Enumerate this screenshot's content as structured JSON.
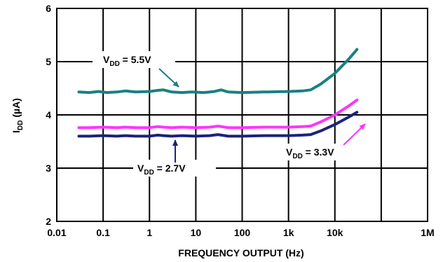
{
  "chart_data": {
    "type": "line",
    "xlabel": "FREQUENCY OUTPUT (Hz)",
    "ylabel_main": "I",
    "ylabel_sub": "DD",
    "ylabel_unit": " (µA)",
    "x_scale": "log",
    "xlim": [
      0.01,
      1000000
    ],
    "ylim": [
      2,
      6
    ],
    "grid": true,
    "legend": "none",
    "x_ticks": [
      {
        "value": 0.01,
        "label": "0.01"
      },
      {
        "value": 0.1,
        "label": "0.1"
      },
      {
        "value": 1,
        "label": "1"
      },
      {
        "value": 10,
        "label": "10"
      },
      {
        "value": 100,
        "label": "100"
      },
      {
        "value": 1000,
        "label": "1k"
      },
      {
        "value": 10000,
        "label": "10k"
      },
      {
        "value": 1000000,
        "label": "1M"
      }
    ],
    "y_ticks": [
      {
        "value": 2,
        "label": "2"
      },
      {
        "value": 3,
        "label": "3"
      },
      {
        "value": 4,
        "label": "4"
      },
      {
        "value": 5,
        "label": "5"
      },
      {
        "value": 6,
        "label": "6"
      }
    ],
    "series": [
      {
        "name": "VDD = 5.5V",
        "color": "#1a8080",
        "points": [
          [
            0.03,
            4.43
          ],
          [
            0.05,
            4.42
          ],
          [
            0.08,
            4.44
          ],
          [
            0.12,
            4.42
          ],
          [
            0.2,
            4.43
          ],
          [
            0.3,
            4.45
          ],
          [
            0.5,
            4.43
          ],
          [
            1,
            4.44
          ],
          [
            1.5,
            4.46
          ],
          [
            2,
            4.47
          ],
          [
            3,
            4.43
          ],
          [
            5,
            4.42
          ],
          [
            8,
            4.43
          ],
          [
            15,
            4.42
          ],
          [
            25,
            4.44
          ],
          [
            35,
            4.47
          ],
          [
            50,
            4.43
          ],
          [
            100,
            4.42
          ],
          [
            300,
            4.43
          ],
          [
            1000,
            4.44
          ],
          [
            2000,
            4.45
          ],
          [
            3000,
            4.47
          ],
          [
            5000,
            4.58
          ],
          [
            10000,
            4.78
          ],
          [
            20000,
            5.05
          ],
          [
            30000,
            5.23
          ]
        ]
      },
      {
        "name": "VDD = 3.3V",
        "color": "#ff33ff",
        "points": [
          [
            0.03,
            3.76
          ],
          [
            0.05,
            3.76
          ],
          [
            0.1,
            3.77
          ],
          [
            0.2,
            3.76
          ],
          [
            0.3,
            3.77
          ],
          [
            0.5,
            3.76
          ],
          [
            1,
            3.76
          ],
          [
            1.5,
            3.78
          ],
          [
            2,
            3.77
          ],
          [
            3,
            3.76
          ],
          [
            5,
            3.77
          ],
          [
            10,
            3.76
          ],
          [
            20,
            3.77
          ],
          [
            30,
            3.79
          ],
          [
            50,
            3.76
          ],
          [
            100,
            3.76
          ],
          [
            300,
            3.77
          ],
          [
            1000,
            3.77
          ],
          [
            2000,
            3.78
          ],
          [
            3000,
            3.79
          ],
          [
            5000,
            3.87
          ],
          [
            10000,
            4.0
          ],
          [
            20000,
            4.17
          ],
          [
            30000,
            4.28
          ]
        ]
      },
      {
        "name": "VDD = 2.7V",
        "color": "#1a237e",
        "points": [
          [
            0.03,
            3.6
          ],
          [
            0.05,
            3.6
          ],
          [
            0.1,
            3.61
          ],
          [
            0.2,
            3.6
          ],
          [
            0.3,
            3.61
          ],
          [
            0.5,
            3.6
          ],
          [
            1,
            3.6
          ],
          [
            1.5,
            3.62
          ],
          [
            2,
            3.61
          ],
          [
            3,
            3.6
          ],
          [
            5,
            3.61
          ],
          [
            10,
            3.6
          ],
          [
            20,
            3.61
          ],
          [
            30,
            3.63
          ],
          [
            50,
            3.6
          ],
          [
            100,
            3.6
          ],
          [
            300,
            3.61
          ],
          [
            1000,
            3.61
          ],
          [
            2000,
            3.62
          ],
          [
            3000,
            3.63
          ],
          [
            5000,
            3.7
          ],
          [
            10000,
            3.82
          ],
          [
            20000,
            3.96
          ],
          [
            30000,
            4.05
          ]
        ]
      }
    ],
    "annotations": [
      {
        "id": "vdd55",
        "main": "V",
        "sub": "DD",
        "rest": " = 5.5V"
      },
      {
        "id": "vdd33",
        "main": "V",
        "sub": "DD",
        "rest": " = 3.3V"
      },
      {
        "id": "vdd27",
        "main": "V",
        "sub": "DD",
        "rest": " = 2.7V"
      }
    ]
  }
}
